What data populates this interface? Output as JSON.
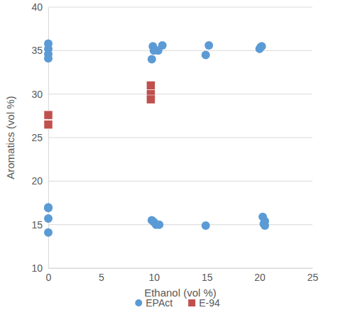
{
  "chart_data": {
    "type": "scatter",
    "x_label": "Ethanol (vol %)",
    "y_label": "Aromatics (vol %)",
    "xlim": [
      0,
      25
    ],
    "xticks": [
      0,
      5,
      10,
      15,
      20,
      25
    ],
    "ylim": [
      10,
      40
    ],
    "yticks": [
      10,
      15,
      20,
      25,
      30,
      35,
      40
    ],
    "grid": true,
    "legend": "bottom",
    "series": [
      {
        "name": "EPAct",
        "color": "#5b9bd5",
        "marker": "circle",
        "x": [
          0,
          0,
          0,
          0,
          0,
          0,
          0,
          0,
          9.9,
          10.0,
          10.8,
          10.4,
          9.8,
          9.8,
          10.0,
          10.2,
          10.5,
          14.9,
          15.2,
          14.9,
          20.0,
          20.2,
          20.1,
          20.3,
          20.5,
          20.4,
          20.5
        ],
        "values": [
          35.8,
          35.2,
          34.6,
          34.1,
          17.0,
          16.9,
          15.7,
          14.1,
          35.5,
          35.0,
          35.6,
          35.0,
          34.0,
          15.5,
          15.3,
          15.0,
          15.0,
          34.5,
          35.6,
          14.9,
          35.2,
          35.5,
          35.4,
          15.9,
          15.4,
          15.1,
          14.9
        ]
      },
      {
        "name": "E-94",
        "color": "#c0504d",
        "marker": "square",
        "x": [
          0,
          0,
          9.7,
          9.7,
          9.7
        ],
        "values": [
          27.6,
          26.5,
          31.0,
          30.0,
          29.4
        ]
      }
    ]
  }
}
